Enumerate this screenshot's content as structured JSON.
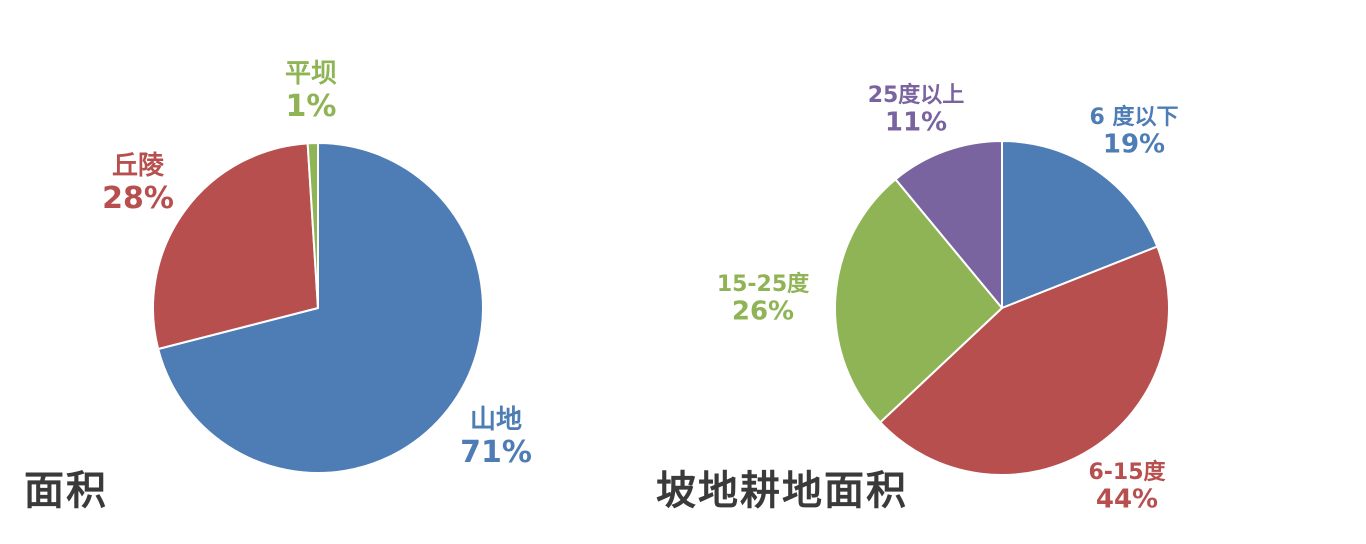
{
  "chart_data": [
    {
      "type": "pie",
      "title": "面积",
      "slices": [
        {
          "label": "山地",
          "value": 71,
          "display": "71%",
          "color": "#4e7cb5"
        },
        {
          "label": "丘陵",
          "value": 28,
          "display": "28%",
          "color": "#b84f4f"
        },
        {
          "label": "平坝",
          "value": 1,
          "display": "1%",
          "color": "#8fb455"
        }
      ]
    },
    {
      "type": "pie",
      "title": "坡地耕地面积",
      "slices": [
        {
          "label": "6 度以下",
          "value": 19,
          "display": "19%",
          "color": "#4e7cb5"
        },
        {
          "label": "6-15度",
          "value": 44,
          "display": "44%",
          "color": "#b84f4f"
        },
        {
          "label": "15-25度",
          "value": 26,
          "display": "26%",
          "color": "#8fb455"
        },
        {
          "label": "25度以上",
          "value": 11,
          "display": "11%",
          "color": "#7a64a0"
        }
      ]
    }
  ]
}
